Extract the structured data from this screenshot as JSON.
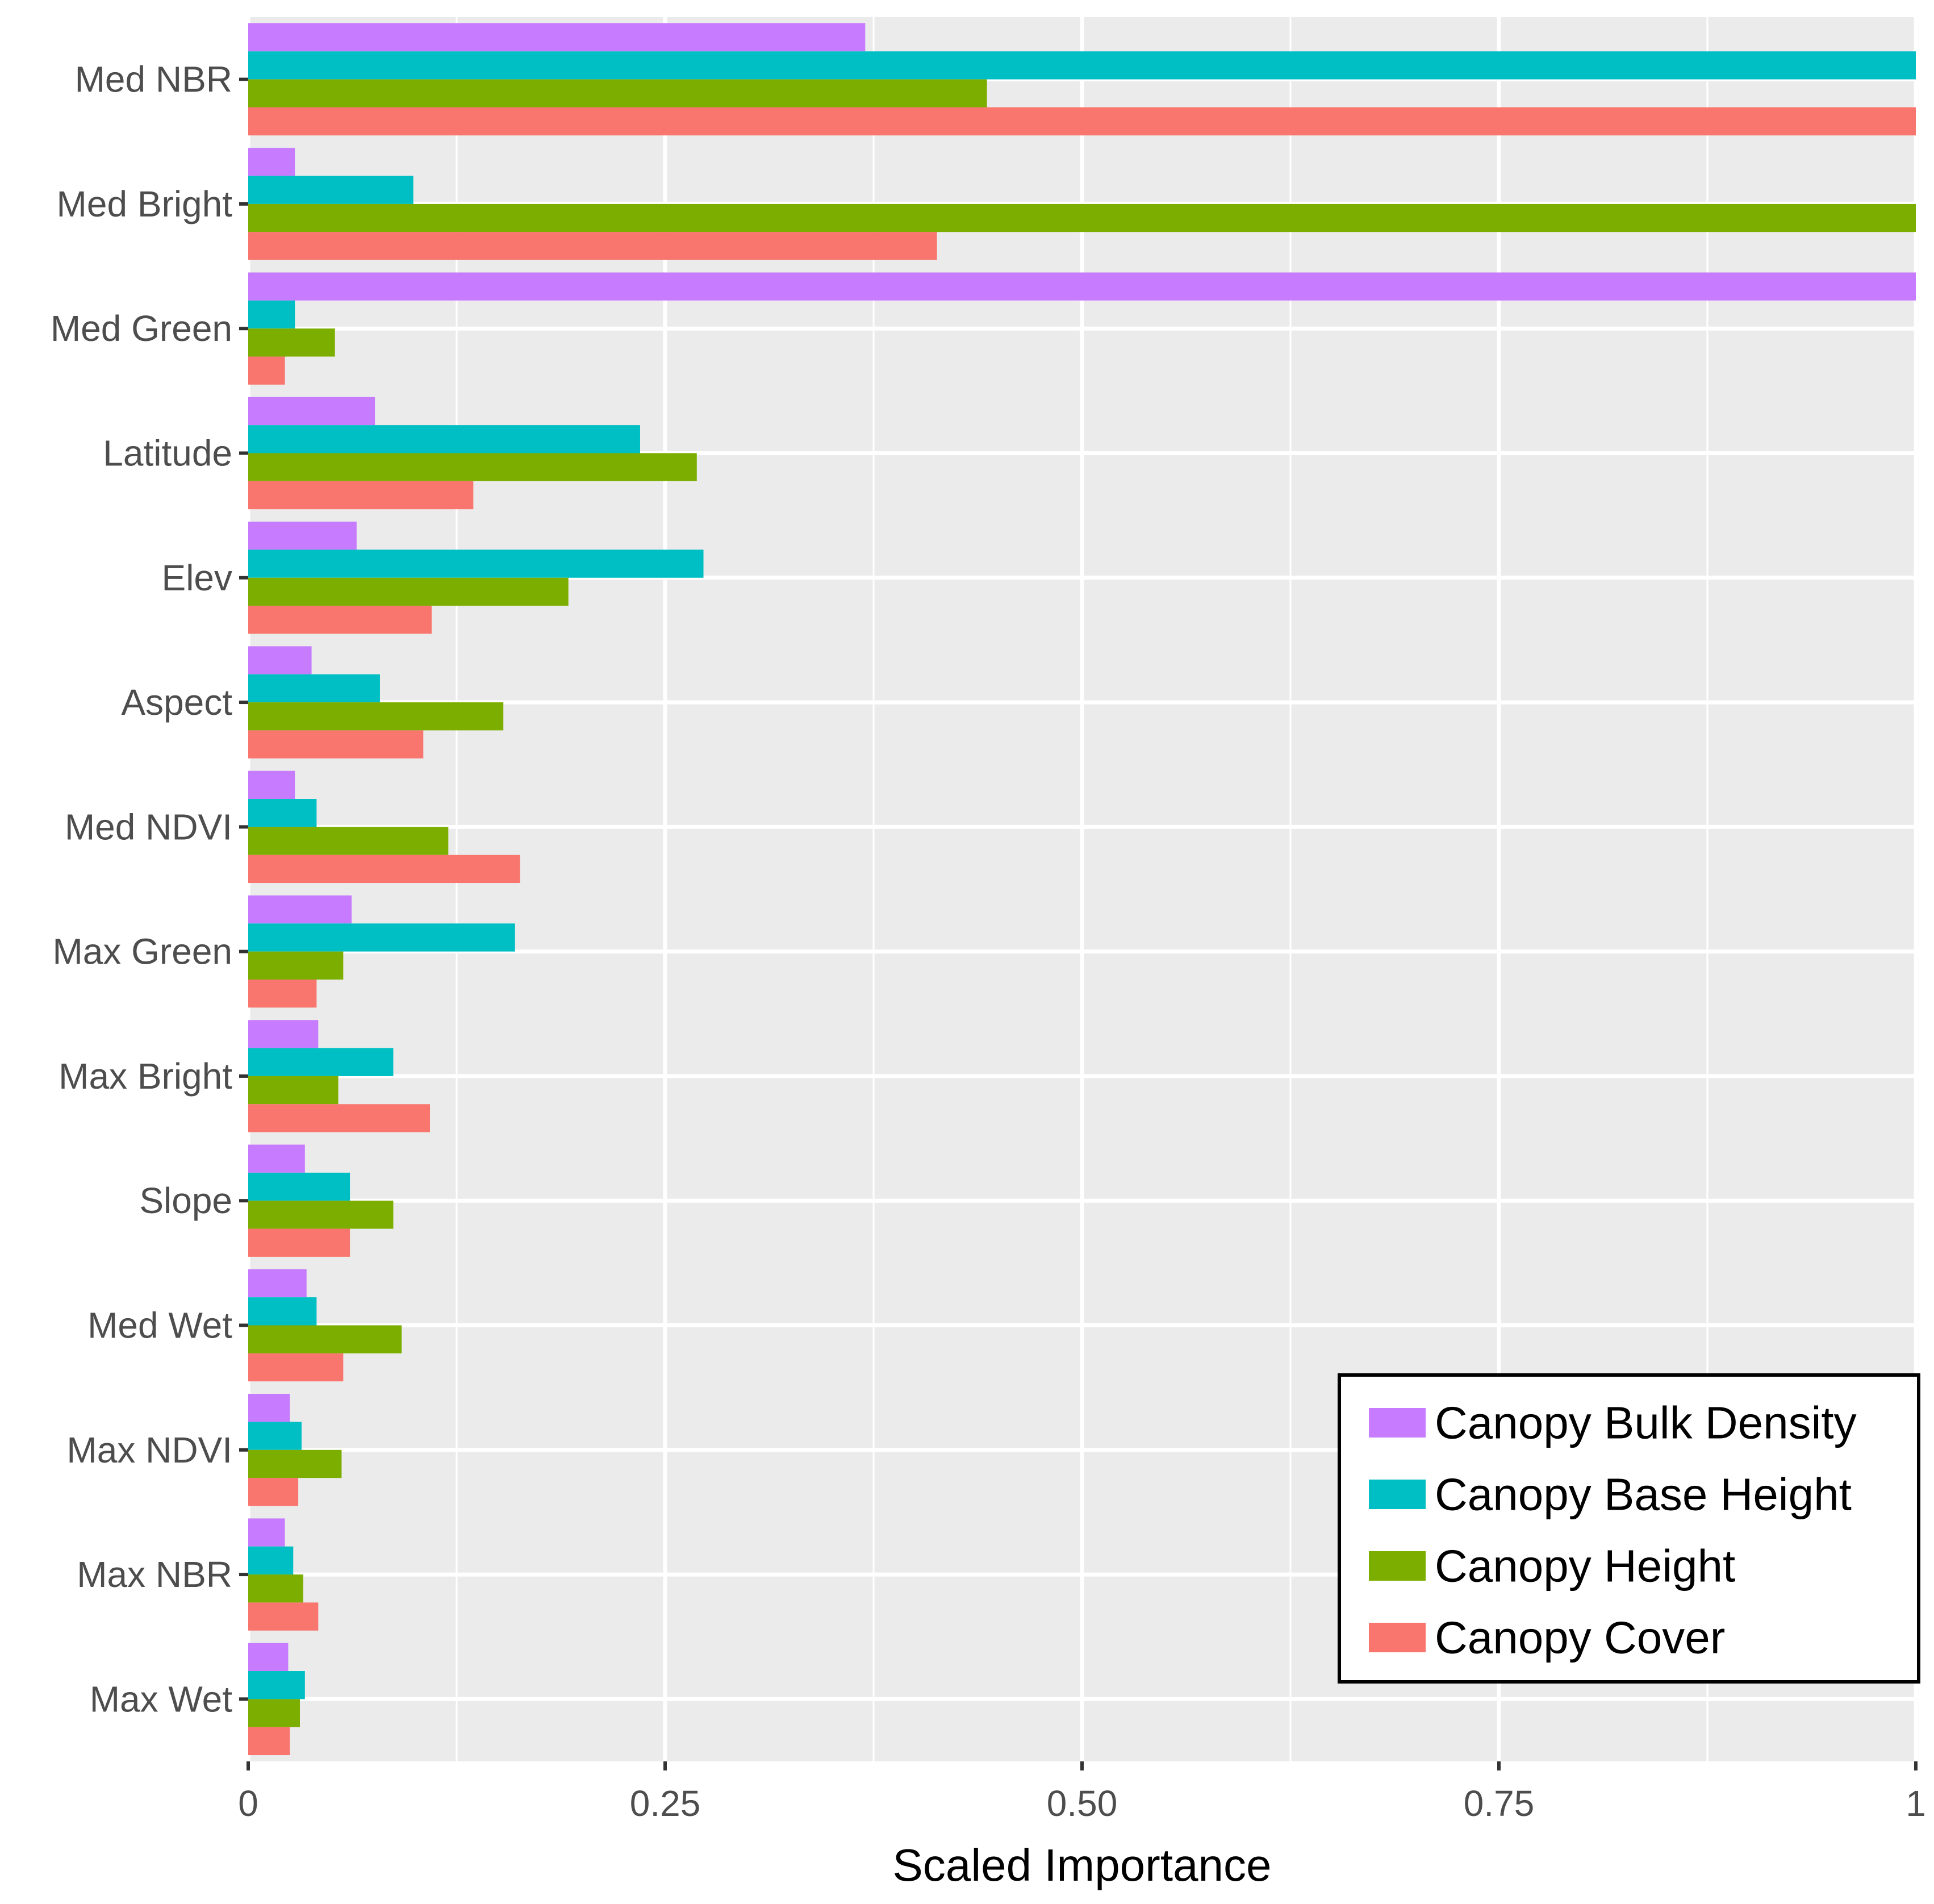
{
  "chart_data": {
    "type": "bar",
    "orientation": "horizontal",
    "title": "",
    "xlabel": "Scaled Importance",
    "ylabel": "",
    "xlim": [
      0,
      1
    ],
    "x_ticks": [
      0,
      0.25,
      0.5,
      0.75,
      1
    ],
    "x_tick_labels": [
      "0",
      "0.25",
      "0.50",
      "0.75",
      "1"
    ],
    "grid": true,
    "legend_position": "bottom-right",
    "categories": [
      "Med NBR",
      "Med Bright",
      "Med Green",
      "Latitude",
      "Elev",
      "Aspect",
      "Med NDVI",
      "Max Green",
      "Max Bright",
      "Slope",
      "Med Wet",
      "Max NDVI",
      "Max NBR",
      "Max Wet"
    ],
    "series": [
      {
        "name": "Canopy Bulk Density",
        "color": "#C77CFF",
        "values": [
          0.37,
          0.028,
          1.0,
          0.076,
          0.065,
          0.038,
          0.028,
          0.062,
          0.042,
          0.034,
          0.035,
          0.025,
          0.022,
          0.024
        ]
      },
      {
        "name": "Canopy Base Height",
        "color": "#00BFC4",
        "values": [
          1.0,
          0.099,
          0.028,
          0.235,
          0.273,
          0.079,
          0.041,
          0.16,
          0.087,
          0.061,
          0.041,
          0.032,
          0.027,
          0.034
        ]
      },
      {
        "name": "Canopy Height",
        "color": "#7CAE00",
        "values": [
          0.443,
          1.0,
          0.052,
          0.269,
          0.192,
          0.153,
          0.12,
          0.057,
          0.054,
          0.087,
          0.092,
          0.056,
          0.033,
          0.031
        ]
      },
      {
        "name": "Canopy Cover",
        "color": "#F8766D",
        "values": [
          1.0,
          0.413,
          0.022,
          0.135,
          0.11,
          0.105,
          0.163,
          0.041,
          0.109,
          0.061,
          0.057,
          0.03,
          0.042,
          0.025
        ]
      }
    ]
  }
}
